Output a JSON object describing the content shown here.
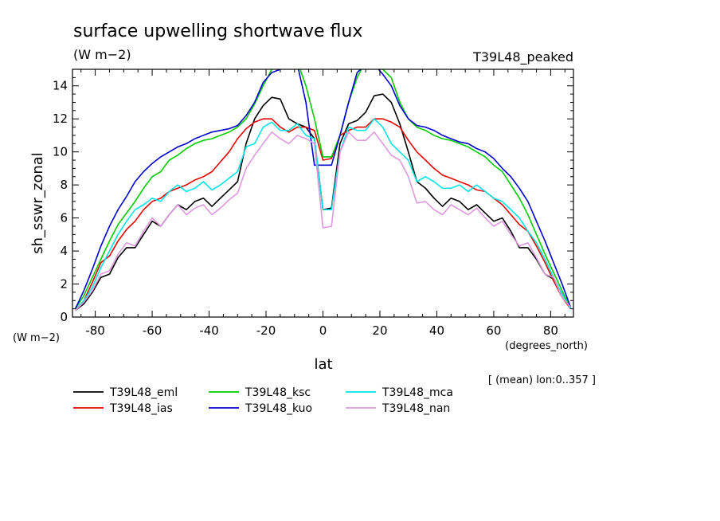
{
  "chart_data": {
    "type": "line",
    "title": "surface upwelling shortwave flux",
    "title_units": "(W m−2)",
    "experiment_label": "T39L48_peaked",
    "ylabel": "sh_sswr_zonal",
    "y_units": "(W m−2)",
    "xlabel": "lat",
    "x_units": "(degrees_north)",
    "averaging_note": "[ (mean) lon:0..357 ]",
    "xlim": [
      -88,
      88
    ],
    "ylim": [
      0,
      15
    ],
    "x_ticks": [
      -80,
      -60,
      -40,
      -20,
      0,
      20,
      40,
      60,
      80
    ],
    "y_ticks": [
      0,
      2,
      4,
      6,
      8,
      10,
      12,
      14
    ],
    "x": [
      -87,
      -84,
      -81,
      -78,
      -75,
      -72,
      -69,
      -66,
      -63,
      -60,
      -57,
      -54,
      -51,
      -48,
      -45,
      -42,
      -39,
      -36,
      -33,
      -30,
      -27,
      -24,
      -21,
      -18,
      -15,
      -12,
      -9,
      -6,
      -3,
      0,
      3,
      6,
      9,
      12,
      15,
      18,
      21,
      24,
      27,
      30,
      33,
      36,
      39,
      42,
      45,
      48,
      51,
      54,
      57,
      60,
      63,
      66,
      69,
      72,
      75,
      78,
      81,
      84,
      87
    ],
    "series": [
      {
        "name": "T39L48_eml",
        "color": "#000000",
        "values": [
          0.4,
          0.8,
          1.5,
          2.4,
          2.6,
          3.6,
          4.2,
          4.2,
          5.0,
          5.8,
          5.5,
          6.2,
          6.8,
          6.5,
          7.0,
          7.2,
          6.7,
          7.2,
          7.7,
          8.2,
          10.5,
          12.0,
          12.8,
          13.3,
          13.2,
          12.0,
          11.7,
          11.5,
          10.8,
          6.5,
          6.6,
          10.5,
          11.7,
          11.9,
          12.4,
          13.4,
          13.5,
          13.0,
          11.7,
          10.0,
          8.2,
          7.8,
          7.2,
          6.7,
          7.2,
          7.0,
          6.5,
          6.8,
          6.3,
          5.8,
          6.0,
          5.2,
          4.2,
          4.2,
          3.5,
          2.6,
          2.3,
          1.4,
          0.6
        ]
      },
      {
        "name": "T39L48_ias",
        "color": "#e60000",
        "values": [
          0.4,
          1.0,
          2.1,
          3.3,
          3.7,
          4.6,
          5.3,
          5.8,
          6.5,
          7.0,
          7.2,
          7.6,
          7.8,
          8.0,
          8.3,
          8.5,
          8.8,
          9.4,
          10.0,
          10.8,
          11.4,
          11.8,
          12.0,
          12.0,
          11.5,
          11.2,
          11.5,
          11.5,
          11.3,
          9.5,
          9.6,
          11.0,
          11.3,
          11.5,
          11.5,
          12.0,
          12.0,
          11.8,
          11.5,
          10.7,
          10.0,
          9.5,
          9.0,
          8.6,
          8.4,
          8.2,
          8.0,
          7.7,
          7.6,
          7.2,
          6.8,
          6.2,
          5.6,
          5.2,
          4.3,
          3.3,
          2.2,
          1.2,
          0.5
        ]
      },
      {
        "name": "T39L48_ksc",
        "color": "#00cc00",
        "values": [
          0.5,
          1.3,
          2.4,
          3.5,
          4.6,
          5.6,
          6.3,
          7.0,
          7.8,
          8.5,
          8.8,
          9.5,
          9.8,
          10.2,
          10.5,
          10.7,
          10.8,
          11.0,
          11.2,
          11.5,
          12.0,
          12.9,
          14.0,
          15.0,
          15.3,
          15.5,
          15.5,
          14.0,
          12.0,
          9.7,
          9.7,
          11.0,
          13.0,
          14.5,
          15.5,
          15.5,
          15.0,
          14.5,
          13.0,
          12.0,
          11.5,
          11.3,
          11.0,
          10.8,
          10.7,
          10.5,
          10.3,
          10.0,
          9.7,
          9.2,
          8.8,
          8.0,
          7.2,
          6.2,
          5.0,
          3.8,
          2.7,
          1.6,
          0.5
        ]
      },
      {
        "name": "T39L48_kuo",
        "color": "#0000cc",
        "values": [
          0.5,
          1.6,
          2.9,
          4.3,
          5.5,
          6.5,
          7.3,
          8.2,
          8.8,
          9.3,
          9.7,
          10.0,
          10.3,
          10.5,
          10.8,
          11.0,
          11.2,
          11.3,
          11.4,
          11.6,
          12.2,
          13.0,
          14.2,
          14.8,
          15.0,
          15.3,
          15.3,
          13.0,
          9.2,
          9.2,
          9.2,
          11.0,
          13.0,
          14.8,
          15.3,
          15.3,
          14.7,
          14.0,
          12.8,
          12.0,
          11.6,
          11.5,
          11.3,
          11.0,
          10.8,
          10.6,
          10.5,
          10.2,
          10.0,
          9.6,
          9.0,
          8.5,
          7.8,
          7.0,
          5.8,
          4.6,
          3.3,
          2.0,
          0.6
        ]
      },
      {
        "name": "T39L48_mca",
        "color": "#00e6e6",
        "values": [
          0.4,
          1.0,
          1.8,
          3.0,
          4.0,
          5.0,
          5.8,
          6.5,
          6.8,
          7.2,
          7.0,
          7.6,
          8.0,
          7.6,
          7.8,
          8.2,
          7.7,
          8.0,
          8.4,
          8.8,
          10.3,
          10.5,
          11.5,
          11.8,
          11.3,
          11.3,
          11.7,
          11.0,
          10.8,
          6.5,
          6.5,
          10.0,
          11.5,
          11.3,
          11.3,
          12.0,
          11.5,
          10.5,
          10.0,
          9.5,
          8.2,
          8.5,
          8.2,
          7.8,
          7.8,
          8.0,
          7.6,
          8.0,
          7.6,
          7.2,
          7.0,
          6.5,
          6.0,
          5.2,
          4.5,
          3.5,
          2.4,
          1.4,
          0.5
        ]
      },
      {
        "name": "T39L48_nan",
        "color": "#dd99dd",
        "values": [
          0.4,
          0.9,
          1.6,
          2.6,
          2.8,
          3.8,
          4.5,
          4.3,
          5.2,
          6.0,
          5.5,
          6.2,
          6.8,
          6.2,
          6.6,
          6.8,
          6.2,
          6.6,
          7.1,
          7.5,
          9.0,
          9.8,
          10.5,
          11.2,
          10.8,
          10.5,
          11.0,
          10.8,
          10.5,
          5.4,
          5.5,
          10.0,
          11.2,
          10.7,
          10.7,
          11.2,
          10.5,
          9.8,
          9.5,
          8.5,
          6.9,
          7.0,
          6.5,
          6.2,
          6.8,
          6.5,
          6.2,
          6.6,
          6.0,
          5.5,
          5.8,
          5.0,
          4.3,
          4.5,
          3.6,
          2.6,
          2.4,
          1.2,
          0.6
        ]
      }
    ]
  }
}
